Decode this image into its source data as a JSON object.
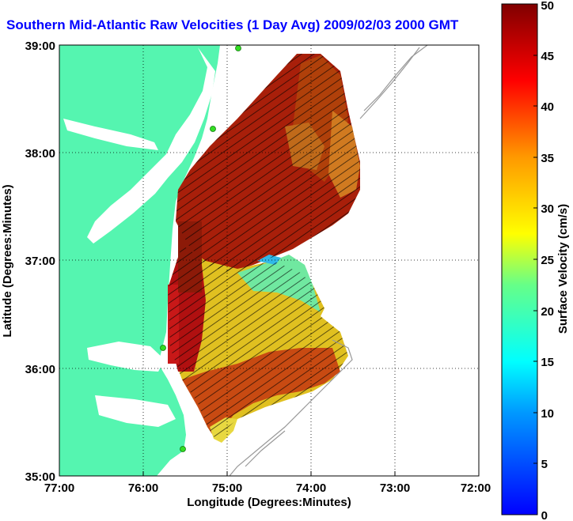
{
  "title": "Southern Mid-Atlantic Raw Velocities (1 Day Avg) 2009/02/03 2000 GMT",
  "x_axis": {
    "label": "Longitude (Degrees:Minutes)",
    "ticks": [
      "77:00",
      "76:00",
      "75:00",
      "74:00",
      "73:00",
      "72:00"
    ]
  },
  "y_axis": {
    "label": "Latitude (Degrees:Minutes)",
    "ticks": [
      "39:00",
      "38:00",
      "37:00",
      "36:00",
      "35:00"
    ]
  },
  "colorbar": {
    "label": "Surface Velocity (cm/s)",
    "ticks": [
      "50",
      "45",
      "40",
      "35",
      "30",
      "25",
      "20",
      "15",
      "10",
      "5",
      "0"
    ],
    "range": [
      0,
      50
    ]
  },
  "colors": {
    "land": "#55f5b0",
    "water": "#ffffff",
    "title": "#0000ff",
    "station": "#33dd22"
  }
}
